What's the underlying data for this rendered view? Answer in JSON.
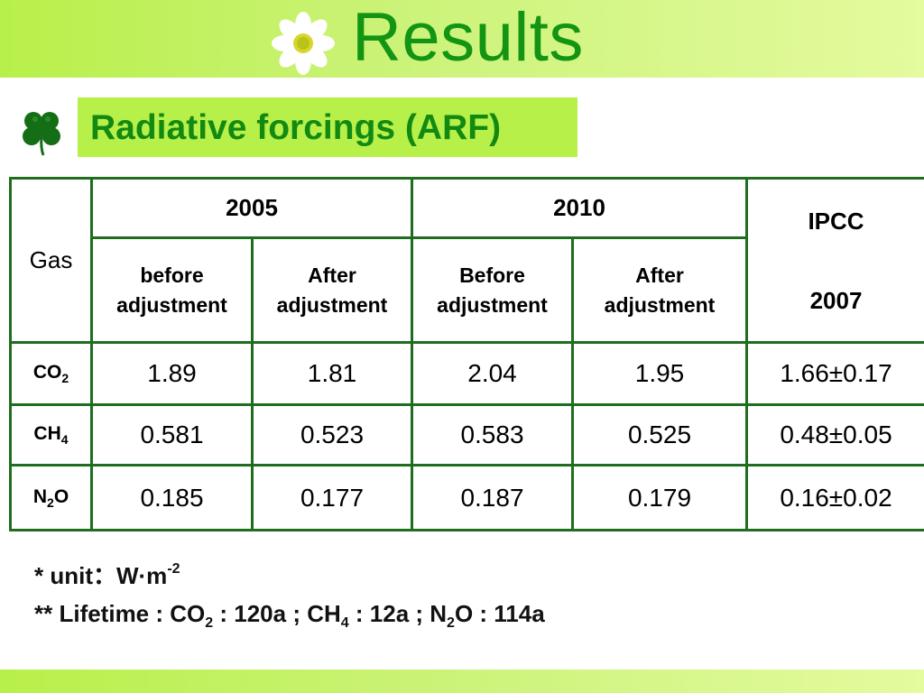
{
  "title": "Results",
  "subtitle": "Radiative forcings (ARF)",
  "colors": {
    "band_green": "#b8f04a",
    "title_green": "#139413",
    "cell_dark_green": "#0d830d",
    "cell_cream": "#fbfde8",
    "border_green": "#1e6e1e"
  },
  "icons": {
    "title_icon": "daisy-flower-icon",
    "subtitle_bullet": "clover-icon"
  },
  "table": {
    "gas_header": "Gas",
    "year_2005": "2005",
    "year_2010": "2010",
    "ipcc_header_line1": "IPCC",
    "ipcc_header_line2": "2007",
    "subheaders": {
      "before_2005": [
        "before",
        "adjustment"
      ],
      "after_2005": [
        "After",
        "adjustment"
      ],
      "before_2010": [
        "Before",
        "adjustment"
      ],
      "after_2010": [
        "After",
        "adjustment"
      ]
    },
    "rows": [
      {
        "gas_base": "CO",
        "gas_sub": "2",
        "before_2005": "1.89",
        "after_2005": "1.81",
        "before_2010": "2.04",
        "after_2010": "1.95",
        "ipcc": "1.66±0.17"
      },
      {
        "gas_base": "CH",
        "gas_sub": "4",
        "before_2005": "0.581",
        "after_2005": "0.523",
        "before_2010": "0.583",
        "after_2010": "0.525",
        "ipcc": "0.48±0.05"
      },
      {
        "gas_base": "N",
        "gas_sub": "2",
        "gas_tail": "O",
        "before_2005": "0.185",
        "after_2005": "0.177",
        "before_2010": "0.187",
        "after_2010": "0.179",
        "ipcc": "0.16±0.02"
      }
    ]
  },
  "notes": {
    "unit_prefix": "*  unit：W·m",
    "unit_sup": "-2",
    "lifetime": {
      "prefix": "** Lifetime : CO",
      "co2_sub": "2",
      "co2_value": " : 120a ; CH",
      "ch4_sub": "4",
      "ch4_value": " : 12a ; N",
      "n2o_sub": "2",
      "n2o_value": "O : 114a"
    }
  }
}
